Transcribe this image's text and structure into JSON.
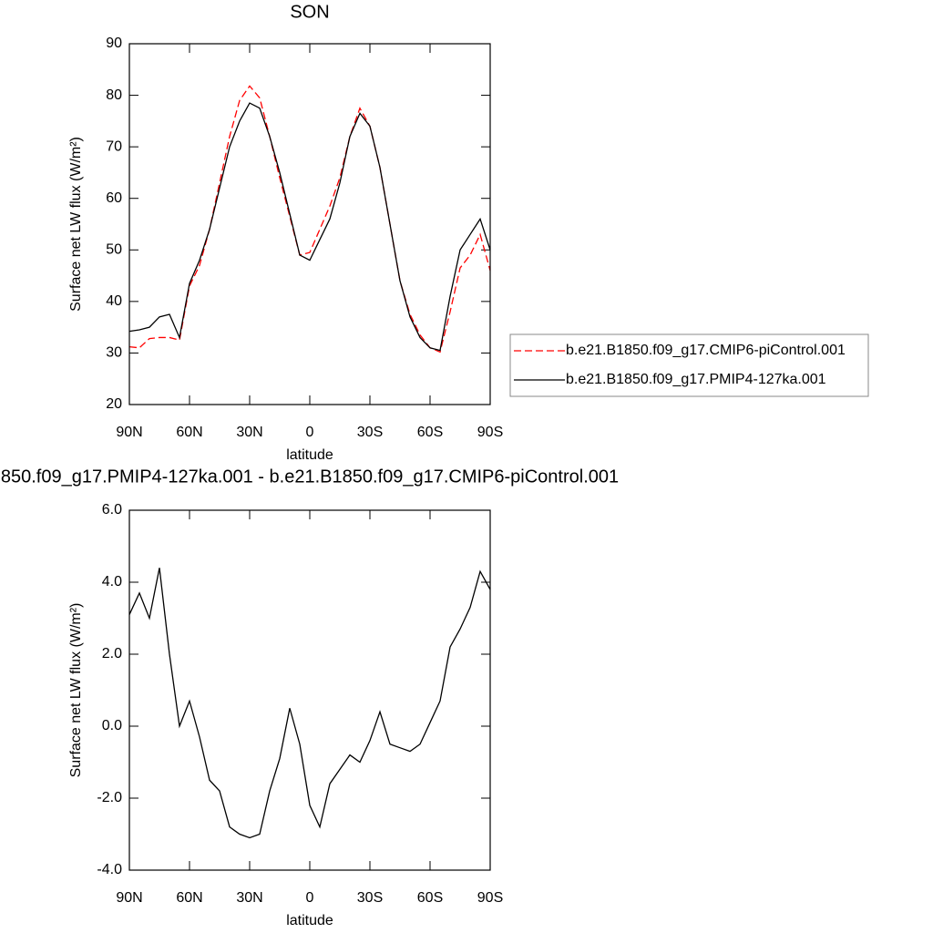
{
  "chart_data": [
    {
      "type": "line",
      "title": "SON",
      "xlabel": "latitude",
      "ylabel": "Surface net LW flux (W/m²)",
      "x": [
        90,
        85,
        80,
        75,
        70,
        65,
        60,
        55,
        50,
        45,
        40,
        35,
        30,
        25,
        20,
        15,
        10,
        5,
        0,
        -5,
        -10,
        -15,
        -20,
        -25,
        -30,
        -35,
        -40,
        -45,
        -50,
        -55,
        -60,
        -65,
        -70,
        -75,
        -80,
        -85,
        -90
      ],
      "series": [
        {
          "name": "b.e21.B1850.f09_g17.CMIP6-piControl.001",
          "color": "#ff0000",
          "dash": true,
          "values": [
            31.2,
            31,
            32.8,
            33,
            33,
            32.5,
            43,
            47,
            54,
            63,
            72,
            79,
            81.8,
            79.5,
            72,
            64,
            56.5,
            49,
            49.5,
            54,
            58.5,
            64,
            72,
            77.5,
            74,
            66,
            55,
            44,
            37.5,
            33.5,
            31,
            30.2,
            38,
            46.5,
            49,
            53,
            46
          ]
        },
        {
          "name": "b.e21.B1850.f09_g17.PMIP4-127ka.001",
          "color": "#000000",
          "dash": false,
          "values": [
            34.2,
            34.5,
            35,
            37,
            37.5,
            33,
            43.5,
            48,
            54,
            62,
            70,
            75,
            78.5,
            77.5,
            72,
            65,
            57,
            49,
            48,
            52,
            56,
            63,
            72,
            76.5,
            74,
            66,
            55,
            44,
            37,
            33,
            31,
            30.5,
            41,
            50,
            53,
            56,
            50
          ]
        }
      ],
      "xlim": [
        90,
        -90
      ],
      "xticks": [
        {
          "value": 90,
          "label": "90N"
        },
        {
          "value": 60,
          "label": "60N"
        },
        {
          "value": 30,
          "label": "30N"
        },
        0,
        {
          "value": -30,
          "label": "30S"
        },
        {
          "value": -60,
          "label": "60S"
        },
        {
          "value": -90,
          "label": "90S"
        }
      ],
      "ylim": [
        20,
        90
      ],
      "yticks": [
        20,
        30,
        40,
        50,
        60,
        70,
        80,
        90
      ],
      "legend": "right"
    },
    {
      "type": "line",
      "title": "850.f09_g17.PMIP4-127ka.001 - b.e21.B1850.f09_g17.CMIP6-piControl.001",
      "xlabel": "latitude",
      "ylabel": "Surface net LW flux (W/m²)",
      "x": [
        90,
        85,
        80,
        75,
        70,
        65,
        60,
        55,
        50,
        45,
        40,
        35,
        30,
        25,
        20,
        15,
        10,
        5,
        0,
        -5,
        -10,
        -15,
        -20,
        -25,
        -30,
        -35,
        -40,
        -45,
        -50,
        -55,
        -60,
        -65,
        -70,
        -75,
        -80,
        -85,
        -90
      ],
      "series": [
        {
          "color": "#000000",
          "dash": false,
          "values": [
            3.1,
            3.7,
            3.0,
            4.4,
            2.0,
            0.0,
            0.7,
            -0.3,
            -1.5,
            -1.8,
            -2.8,
            -3.0,
            -3.1,
            -3.0,
            -1.8,
            -0.9,
            0.5,
            -0.5,
            -2.2,
            -2.8,
            -1.6,
            -1.2,
            -0.8,
            -1.0,
            -0.4,
            0.4,
            -0.5,
            -0.6,
            -0.7,
            -0.5,
            0.1,
            0.7,
            2.2,
            2.7,
            3.3,
            4.3,
            3.8
          ]
        }
      ],
      "xlim": [
        90,
        -90
      ],
      "xticks": [
        {
          "value": 90,
          "label": "90N"
        },
        {
          "value": 60,
          "label": "60N"
        },
        {
          "value": 30,
          "label": "30N"
        },
        0,
        {
          "value": -30,
          "label": "30S"
        },
        {
          "value": -60,
          "label": "60S"
        },
        {
          "value": -90,
          "label": "90S"
        }
      ],
      "ylim": [
        -4,
        6
      ],
      "yticks": [
        {
          "value": -4,
          "label": "-4.0"
        },
        {
          "value": -2,
          "label": "-2.0"
        },
        {
          "value": 0,
          "label": "0.0"
        },
        {
          "value": 2,
          "label": "2.0"
        },
        {
          "value": 4,
          "label": "4.0"
        },
        {
          "value": 6,
          "label": "6.0"
        }
      ]
    }
  ]
}
